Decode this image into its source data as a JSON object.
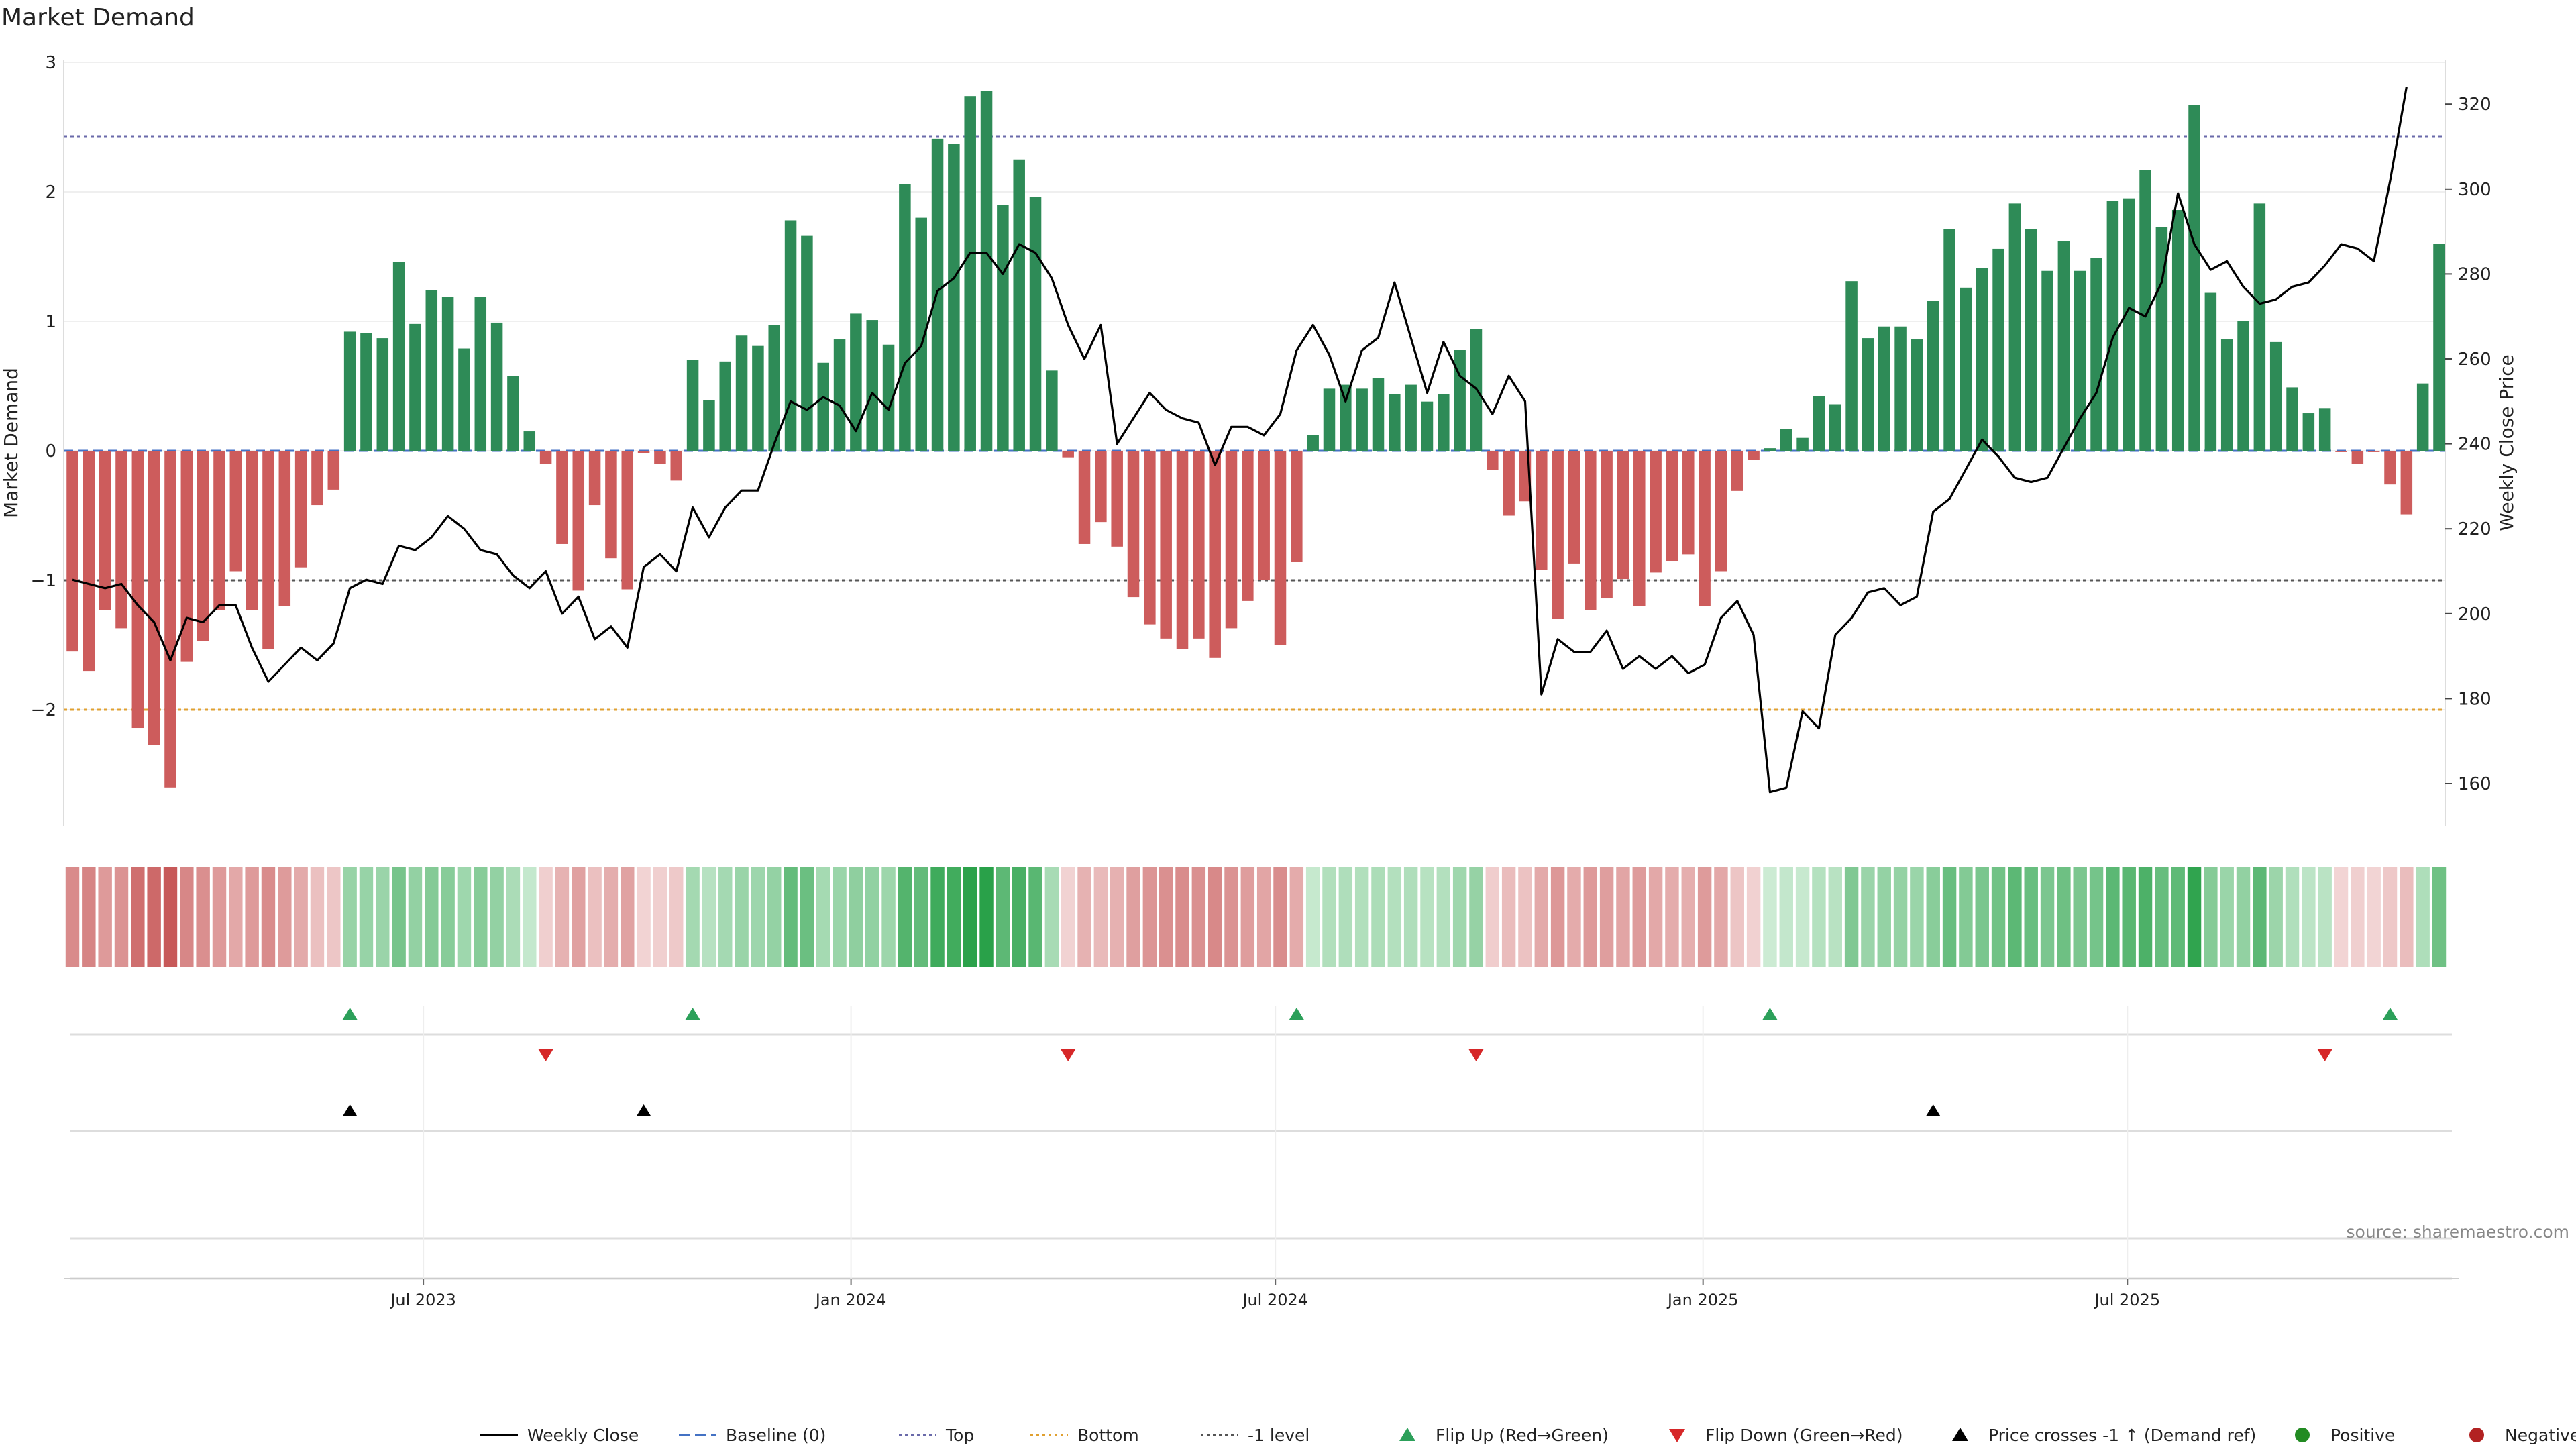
{
  "chart_data": {
    "type": "bar",
    "title": "Market Demand",
    "source": "source: sharemaestro.com",
    "left_axis": {
      "label": "Market Demand",
      "range": [
        -2.92,
        3.0
      ],
      "ticks": [
        3,
        2,
        1,
        0,
        -1,
        -2
      ],
      "tick_labels": [
        "3",
        "2",
        "1",
        "0",
        "−1",
        "−2"
      ]
    },
    "right_axis": {
      "label": "Weekly Close Price",
      "range": [
        153.6,
        324.0
      ],
      "ticks": [
        320,
        300,
        280,
        260,
        240,
        220,
        200,
        180,
        160
      ],
      "tick_labels": [
        "320",
        "300",
        "280",
        "260",
        "240",
        "220",
        "200",
        "180",
        "160"
      ]
    },
    "x_axis": {
      "ticks": [
        21.5,
        47.7,
        73.7,
        99.9,
        125.9
      ],
      "tick_labels": [
        "Jul 2023",
        "Jan 2024",
        "Jul 2024",
        "Jan 2025",
        "Jul 2025"
      ]
    },
    "reference_lines": {
      "top": 2.43,
      "bottom": -2.0,
      "minus_one": -1.0,
      "baseline": 0
    },
    "series": [
      {
        "name": "Market Demand",
        "values": [
          -1.55,
          -1.7,
          -1.23,
          -1.37,
          -2.14,
          -2.27,
          -2.6,
          -1.63,
          -1.47,
          -1.23,
          -0.93,
          -1.23,
          -1.53,
          -1.2,
          -0.9,
          -0.42,
          -0.3,
          0.92,
          0.91,
          0.87,
          1.46,
          0.98,
          1.24,
          1.19,
          0.79,
          1.19,
          0.99,
          0.58,
          0.15,
          -0.1,
          -0.72,
          -1.08,
          -0.42,
          -0.83,
          -1.07,
          -0.02,
          -0.1,
          -0.23,
          0.7,
          0.39,
          0.69,
          0.89,
          0.81,
          0.97,
          1.78,
          1.66,
          0.68,
          0.86,
          1.06,
          1.01,
          0.82,
          2.06,
          1.8,
          2.41,
          2.37,
          2.74,
          2.78,
          1.9,
          2.25,
          1.96,
          0.62,
          -0.05,
          -0.72,
          -0.55,
          -0.74,
          -1.13,
          -1.34,
          -1.45,
          -1.53,
          -1.45,
          -1.6,
          -1.37,
          -1.16,
          -1.0,
          -1.5,
          -0.86,
          0.12,
          0.48,
          0.51,
          0.48,
          0.56,
          0.44,
          0.51,
          0.38,
          0.44,
          0.78,
          0.94,
          -0.15,
          -0.5,
          -0.39,
          -0.92,
          -1.3,
          -0.87,
          -1.23,
          -1.14,
          -0.99,
          -1.2,
          -0.94,
          -0.85,
          -0.8,
          -1.2,
          -0.93,
          -0.31,
          -0.07,
          0.02,
          0.17,
          0.1,
          0.42,
          0.36,
          1.31,
          0.87,
          0.96,
          0.96,
          0.86,
          1.16,
          1.71,
          1.26,
          1.41,
          1.56,
          1.91,
          1.71,
          1.39,
          1.62,
          1.39,
          1.49,
          1.93,
          1.95,
          2.17,
          1.73,
          1.86,
          2.67,
          1.22,
          0.86,
          1.0,
          1.91,
          0.84,
          0.49,
          0.29,
          0.33,
          -0.01,
          -0.1,
          -0.01,
          -0.26,
          -0.49,
          0.52,
          1.6
        ]
      },
      {
        "name": "Weekly Close",
        "values": [
          208,
          207,
          206,
          207,
          202,
          198,
          189,
          199,
          198,
          202,
          202,
          192,
          184,
          188,
          192,
          189,
          193,
          206,
          208,
          207,
          216,
          215,
          218,
          223,
          220,
          215,
          214,
          209,
          206,
          210,
          200,
          204,
          194,
          197,
          192,
          211,
          214,
          210,
          225,
          218,
          225,
          229,
          229,
          240,
          250,
          248,
          251,
          249,
          243,
          252,
          248,
          259,
          263,
          276,
          279,
          285,
          285,
          280,
          287,
          285,
          279,
          268,
          260,
          268,
          240,
          246,
          252,
          248,
          246,
          245,
          235,
          244,
          244,
          242,
          247,
          262,
          268,
          261,
          250,
          262,
          265,
          278,
          265,
          252,
          264,
          256,
          253,
          247,
          256,
          250,
          181,
          194,
          191,
          191,
          196,
          187,
          190,
          187,
          190,
          186,
          188,
          199,
          203,
          195,
          158,
          159,
          177,
          173,
          195,
          199,
          205,
          206,
          202,
          204,
          224,
          227,
          234,
          241,
          237,
          232,
          231,
          232,
          239,
          246,
          252,
          265,
          272,
          270,
          278,
          299,
          287,
          281,
          283,
          277,
          273,
          274,
          277,
          278,
          282,
          287,
          286,
          283,
          302,
          324
        ]
      }
    ],
    "flip_up": [
      17,
      38,
      75,
      104,
      142
    ],
    "flip_down": [
      29,
      61,
      86,
      138
    ],
    "price_crosses": [
      17,
      35,
      114
    ],
    "positive_color": "#2e8b57",
    "negative_color": "#cd5c5c",
    "legend": [
      {
        "label": "Weekly Close",
        "type": "line",
        "color": "#000000"
      },
      {
        "label": "Baseline (0)",
        "type": "dash",
        "color": "#4472c4"
      },
      {
        "label": "Top",
        "type": "dot",
        "color": "#6a6aaa"
      },
      {
        "label": "Bottom",
        "type": "dot",
        "color": "#e0a030"
      },
      {
        "label": "-1 level",
        "type": "dot",
        "color": "#555555"
      },
      {
        "label": "Flip Up (Red→Green)",
        "type": "tri-up",
        "color": "#2ca05a"
      },
      {
        "label": "Flip Down (Green→Red)",
        "type": "tri-down",
        "color": "#d62728"
      },
      {
        "label": "Price crosses -1 ↑ (Demand ref)",
        "type": "tri-up",
        "color": "#000000"
      },
      {
        "label": "Positive",
        "type": "circle",
        "color": "#228b22"
      },
      {
        "label": "Negative",
        "type": "circle",
        "color": "#b22222"
      }
    ]
  }
}
